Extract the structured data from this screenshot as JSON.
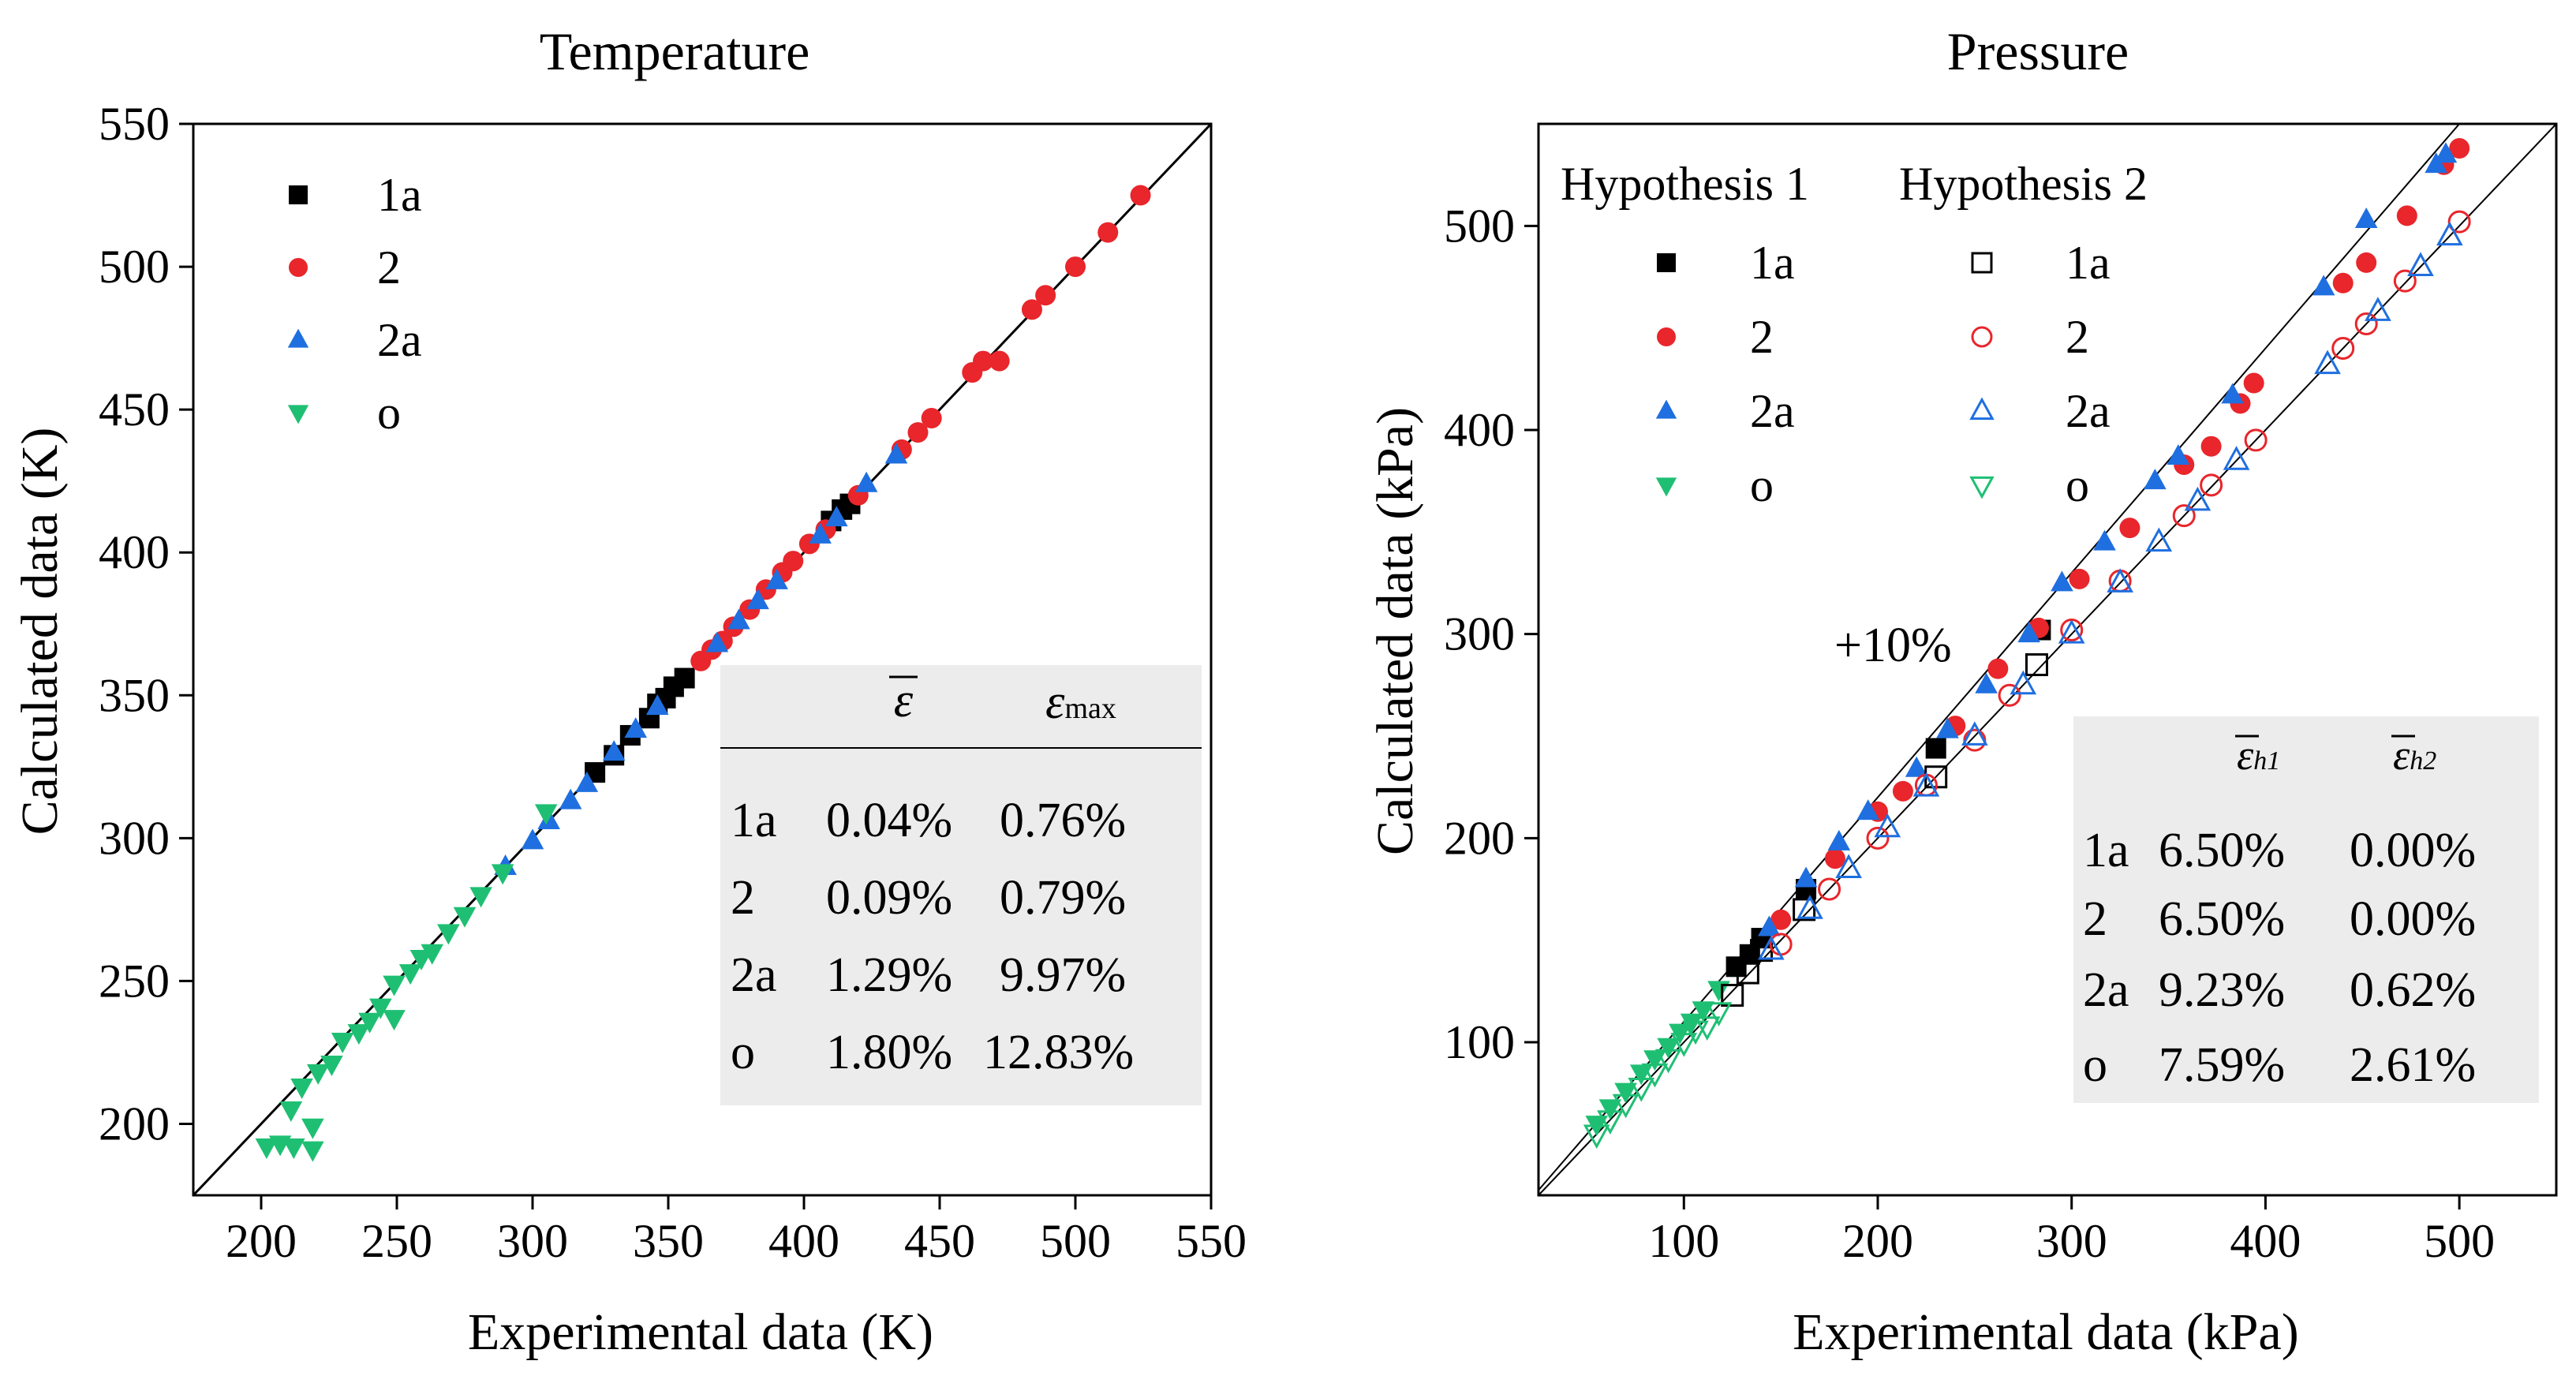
{
  "colors": {
    "1a": "#000000",
    "2": "#e8262b",
    "2a": "#1f6fe0",
    "o": "#1fbf73",
    "table_bg": "#ececec"
  },
  "chart_data": [
    {
      "type": "scatter",
      "title": "Temperature",
      "xlabel": "Experimental data (K)",
      "ylabel": "Calculated data (K)",
      "xlim": [
        175,
        550
      ],
      "ylim": [
        175,
        550
      ],
      "xticks": [
        200,
        250,
        300,
        350,
        400,
        450,
        500,
        550
      ],
      "yticks": [
        200,
        250,
        300,
        350,
        400,
        450,
        500,
        550
      ],
      "reference_line": "y = x",
      "legend": [
        "1a",
        "2",
        "2a",
        "o"
      ],
      "series": [
        {
          "name": "1a",
          "marker": "square",
          "filled": true,
          "points": [
            [
              323,
              323
            ],
            [
              330,
              329
            ],
            [
              336,
              336
            ],
            [
              343,
              342
            ],
            [
              346,
              347
            ],
            [
              349,
              349
            ],
            [
              352,
              353
            ],
            [
              356,
              356
            ],
            [
              410,
              411
            ],
            [
              414,
              415
            ],
            [
              417,
              417
            ]
          ]
        },
        {
          "name": "2",
          "marker": "circle",
          "filled": true,
          "points": [
            [
              362,
              362
            ],
            [
              366,
              366
            ],
            [
              370,
              369
            ],
            [
              374,
              374
            ],
            [
              380,
              380
            ],
            [
              386,
              387
            ],
            [
              392,
              393
            ],
            [
              396,
              397
            ],
            [
              402,
              403
            ],
            [
              408,
              408
            ],
            [
              420,
              420
            ],
            [
              436,
              436
            ],
            [
              442,
              442
            ],
            [
              447,
              447
            ],
            [
              462,
              463
            ],
            [
              466,
              467
            ],
            [
              472,
              467
            ],
            [
              484,
              485
            ],
            [
              489,
              490
            ],
            [
              500,
              500
            ],
            [
              512,
              512
            ],
            [
              524,
              525
            ]
          ]
        },
        {
          "name": "2a",
          "marker": "triangle-up",
          "filled": true,
          "points": [
            [
              290,
              290
            ],
            [
              300,
              299
            ],
            [
              306,
              306
            ],
            [
              314,
              313
            ],
            [
              320,
              319
            ],
            [
              330,
              330
            ],
            [
              338,
              338
            ],
            [
              346,
              346
            ],
            [
              368,
              368
            ],
            [
              376,
              376
            ],
            [
              383,
              383
            ],
            [
              390,
              390
            ],
            [
              406,
              406
            ],
            [
              412,
              412
            ],
            [
              423,
              424
            ],
            [
              434,
              434
            ]
          ]
        },
        {
          "name": "o",
          "marker": "triangle-down",
          "filled": true,
          "points": [
            [
              202,
              192
            ],
            [
              207,
              193
            ],
            [
              211,
              205
            ],
            [
              212,
              192
            ],
            [
              215,
              213
            ],
            [
              219,
              199
            ],
            [
              219,
              191
            ],
            [
              221,
              218
            ],
            [
              226,
              221
            ],
            [
              230,
              229
            ],
            [
              236,
              232
            ],
            [
              240,
              236
            ],
            [
              244,
              241
            ],
            [
              249,
              237
            ],
            [
              249,
              249
            ],
            [
              255,
              253
            ],
            [
              259,
              258
            ],
            [
              263,
              260
            ],
            [
              269,
              267
            ],
            [
              275,
              273
            ],
            [
              281,
              280
            ],
            [
              289,
              288
            ],
            [
              305,
              309
            ]
          ]
        }
      ],
      "table": {
        "header": [
          "ε̄",
          "ε max"
        ],
        "rows": [
          {
            "label": "1a",
            "mean": "0.04%",
            "max": "0.76%"
          },
          {
            "label": "2",
            "mean": "0.09%",
            "max": "0.79%"
          },
          {
            "label": "2a",
            "mean": "1.29%",
            "max": "9.97%"
          },
          {
            "label": "o",
            "mean": "1.80%",
            "max": "12.83%"
          }
        ]
      }
    },
    {
      "type": "scatter",
      "title": "Pressure",
      "xlabel": "Experimental data (kPa)",
      "ylabel": "Calculated data (kPa)",
      "xlim": [
        25,
        550
      ],
      "ylim": [
        25,
        550
      ],
      "xticks": [
        100,
        200,
        300,
        400,
        500
      ],
      "yticks": [
        100,
        200,
        300,
        400,
        500
      ],
      "reference_lines": [
        "y = x",
        "y = 1.1x"
      ],
      "annotation": "+10%",
      "legend_headers": [
        "Hypothesis 1",
        "Hypothesis 2"
      ],
      "legend": [
        "1a",
        "2",
        "2a",
        "o"
      ],
      "series": [
        {
          "name": "1a",
          "hypothesis": 1,
          "marker": "square",
          "filled": true,
          "points": [
            [
              127,
              137
            ],
            [
              134,
              143
            ],
            [
              140,
              151
            ],
            [
              163,
              175
            ],
            [
              230,
              244
            ],
            [
              284,
              302
            ]
          ]
        },
        {
          "name": "2",
          "hypothesis": 1,
          "marker": "circle",
          "filled": true,
          "points": [
            [
              150,
              160
            ],
            [
              178,
              190
            ],
            [
              200,
              213
            ],
            [
              213,
              223
            ],
            [
              240,
              255
            ],
            [
              262,
              283
            ],
            [
              283,
              303
            ],
            [
              304,
              327
            ],
            [
              330,
              352
            ],
            [
              358,
              383
            ],
            [
              372,
              392
            ],
            [
              387,
              413
            ],
            [
              394,
              423
            ],
            [
              440,
              472
            ],
            [
              452,
              482
            ],
            [
              473,
              505
            ],
            [
              492,
              530
            ],
            [
              500,
              538
            ]
          ]
        },
        {
          "name": "2a",
          "hypothesis": 1,
          "marker": "triangle-up",
          "filled": true,
          "points": [
            [
              144,
              156
            ],
            [
              163,
              180
            ],
            [
              180,
              198
            ],
            [
              195,
              213
            ],
            [
              220,
              234
            ],
            [
              236,
              253
            ],
            [
              256,
              275
            ],
            [
              278,
              300
            ],
            [
              295,
              325
            ],
            [
              317,
              345
            ],
            [
              343,
              375
            ],
            [
              355,
              387
            ],
            [
              383,
              417
            ],
            [
              430,
              470
            ],
            [
              452,
              503
            ],
            [
              488,
              530
            ],
            [
              493,
              535
            ]
          ]
        },
        {
          "name": "o",
          "hypothesis": 1,
          "marker": "triangle-down",
          "filled": true,
          "points": [
            [
              55,
              60
            ],
            [
              62,
              68
            ],
            [
              70,
              76
            ],
            [
              78,
              85
            ],
            [
              85,
              92
            ],
            [
              92,
              98
            ],
            [
              98,
              105
            ],
            [
              104,
              110
            ],
            [
              110,
              116
            ],
            [
              118,
              126
            ]
          ]
        },
        {
          "name": "1a",
          "hypothesis": 2,
          "marker": "square",
          "filled": false,
          "points": [
            [
              125,
              123
            ],
            [
              133,
              134
            ],
            [
              140,
              145
            ],
            [
              162,
              165
            ],
            [
              230,
              230
            ],
            [
              282,
              285
            ]
          ]
        },
        {
          "name": "2",
          "hypothesis": 2,
          "marker": "circle",
          "filled": false,
          "points": [
            [
              150,
              148
            ],
            [
              175,
              175
            ],
            [
              200,
              200
            ],
            [
              225,
              226
            ],
            [
              250,
              248
            ],
            [
              268,
              270
            ],
            [
              300,
              302
            ],
            [
              325,
              326
            ],
            [
              358,
              358
            ],
            [
              372,
              373
            ],
            [
              395,
              395
            ],
            [
              440,
              440
            ],
            [
              452,
              452
            ],
            [
              472,
              473
            ],
            [
              500,
              502
            ]
          ]
        },
        {
          "name": "2a",
          "hypothesis": 2,
          "marker": "triangle-up",
          "filled": false,
          "points": [
            [
              145,
              145
            ],
            [
              165,
              165
            ],
            [
              185,
              185
            ],
            [
              205,
              205
            ],
            [
              225,
              225
            ],
            [
              250,
              250
            ],
            [
              275,
              275
            ],
            [
              300,
              300
            ],
            [
              325,
              325
            ],
            [
              345,
              345
            ],
            [
              365,
              365
            ],
            [
              385,
              385
            ],
            [
              432,
              432
            ],
            [
              458,
              458
            ],
            [
              480,
              480
            ],
            [
              495,
              495
            ]
          ]
        },
        {
          "name": "o",
          "hypothesis": 2,
          "marker": "triangle-down",
          "filled": false,
          "points": [
            [
              55,
              55
            ],
            [
              62,
              62
            ],
            [
              70,
              70
            ],
            [
              78,
              78
            ],
            [
              85,
              85
            ],
            [
              92,
              92
            ],
            [
              100,
              100
            ],
            [
              106,
              106
            ],
            [
              112,
              108
            ],
            [
              118,
              115
            ]
          ]
        }
      ],
      "table": {
        "header": [
          "ε̄ h1",
          "ε̄ h2"
        ],
        "rows": [
          {
            "label": "1a",
            "h1": "6.50%",
            "h2": "0.00%"
          },
          {
            "label": "2",
            "h1": "6.50%",
            "h2": "0.00%"
          },
          {
            "label": "2a",
            "h1": "9.23%",
            "h2": "0.62%"
          },
          {
            "label": "o",
            "h1": "7.59%",
            "h2": "2.61%"
          }
        ]
      }
    }
  ],
  "left_text": {
    "title": "Temperature",
    "xlabel": "Experimental data (K)",
    "ylabel": "Calculated data (K)",
    "col_mean": "ε",
    "col_max_base": "ε",
    "col_max_sub": "max"
  },
  "right_text": {
    "title": "Pressure",
    "xlabel": "Experimental data (kPa)",
    "ylabel": "Calculated data (kPa)",
    "annotation": "+10%",
    "hyp1": "Hypothesis 1",
    "hyp2": "Hypothesis 2",
    "col_h1_base": "ε",
    "col_h1_sub": "h1",
    "col_h2_base": "ε",
    "col_h2_sub": "h2"
  }
}
